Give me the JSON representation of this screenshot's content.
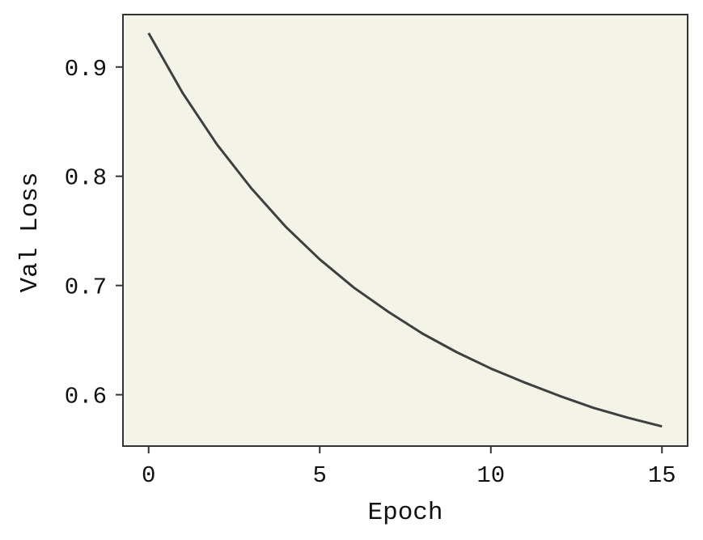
{
  "chart_data": {
    "type": "line",
    "title": "",
    "xlabel": "Epoch",
    "ylabel": "Val Loss",
    "xlim": [
      -0.75,
      15.75
    ],
    "ylim": [
      0.553,
      0.948
    ],
    "xticks": [
      0,
      5,
      10,
      15
    ],
    "yticks": [
      0.6,
      0.7,
      0.8,
      0.9
    ],
    "xtick_labels": [
      "0",
      "5",
      "10",
      "15"
    ],
    "ytick_labels": [
      "0.6",
      "0.7",
      "0.8",
      "0.9"
    ],
    "grid": false,
    "legend": "none",
    "colors": {
      "plot_background": "#f3f3e8",
      "line": "#3f3f3f",
      "axes": "#333333"
    },
    "series": [
      {
        "x": [
          0,
          1,
          2,
          3,
          4,
          5,
          6,
          7,
          8,
          9,
          10,
          11,
          12,
          13,
          14,
          15
        ],
        "values": [
          0.931,
          0.876,
          0.829,
          0.789,
          0.754,
          0.724,
          0.698,
          0.676,
          0.656,
          0.639,
          0.624,
          0.611,
          0.599,
          0.588,
          0.579,
          0.571
        ]
      }
    ]
  }
}
